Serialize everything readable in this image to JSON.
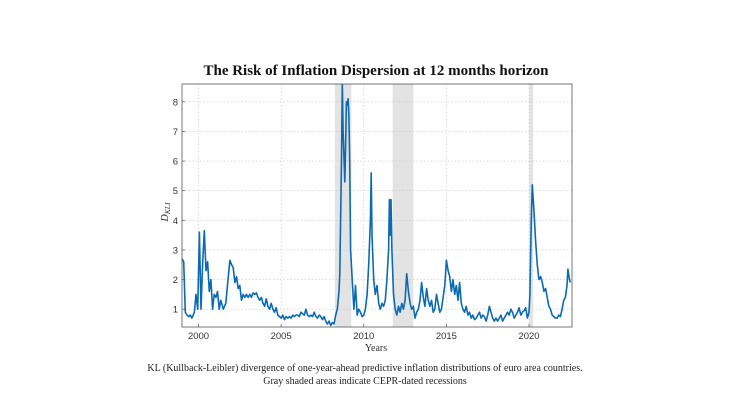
{
  "caption": {
    "line1": "KL (Kullback-Leibler) divergence of one-year-ahead predictive inflation distributions of euro area countries.",
    "line2": "Gray shaded areas indicate CEPR-dated recessions"
  },
  "chart_data": {
    "type": "line",
    "title": "The Risk of Inflation Dispersion at 12 months horizon",
    "xlabel": "Years",
    "ylabel": "D_{KLI}",
    "xlim": [
      1999.0,
      2022.6
    ],
    "ylim": [
      0.4,
      8.6
    ],
    "xticks": [
      2000,
      2005,
      2010,
      2015,
      2020
    ],
    "yticks": [
      1,
      2,
      3,
      4,
      5,
      6,
      7,
      8
    ],
    "grid": true,
    "recessions": [
      [
        2008.25,
        2009.25
      ],
      [
        2011.75,
        2013.0
      ],
      [
        2020.0,
        2020.25
      ]
    ],
    "series": [
      {
        "color": "#0b6ab4",
        "points": [
          [
            1999.0,
            2.7
          ],
          [
            1999.1,
            2.6
          ],
          [
            1999.2,
            0.9
          ],
          [
            1999.3,
            0.8
          ],
          [
            1999.4,
            0.75
          ],
          [
            1999.5,
            0.8
          ],
          [
            1999.6,
            0.7
          ],
          [
            1999.75,
            0.9
          ],
          [
            1999.85,
            1.5
          ],
          [
            1999.95,
            1.0
          ],
          [
            2000.05,
            3.6
          ],
          [
            2000.15,
            1.0
          ],
          [
            2000.25,
            2.6
          ],
          [
            2000.35,
            3.65
          ],
          [
            2000.45,
            2.3
          ],
          [
            2000.55,
            2.6
          ],
          [
            2000.65,
            1.6
          ],
          [
            2000.75,
            2.0
          ],
          [
            2000.85,
            1.0
          ],
          [
            2000.95,
            1.5
          ],
          [
            2001.05,
            1.4
          ],
          [
            2001.15,
            1.6
          ],
          [
            2001.25,
            1.0
          ],
          [
            2001.35,
            1.3
          ],
          [
            2001.5,
            1.0
          ],
          [
            2001.65,
            1.2
          ],
          [
            2001.8,
            2.1
          ],
          [
            2001.9,
            2.65
          ],
          [
            2002.0,
            2.5
          ],
          [
            2002.1,
            2.4
          ],
          [
            2002.2,
            1.9
          ],
          [
            2002.3,
            2.1
          ],
          [
            2002.4,
            1.7
          ],
          [
            2002.5,
            1.8
          ],
          [
            2002.6,
            1.3
          ],
          [
            2002.7,
            1.5
          ],
          [
            2002.8,
            1.4
          ],
          [
            2002.9,
            1.5
          ],
          [
            2003.0,
            1.4
          ],
          [
            2003.1,
            1.5
          ],
          [
            2003.2,
            1.4
          ],
          [
            2003.3,
            1.55
          ],
          [
            2003.4,
            1.5
          ],
          [
            2003.5,
            1.55
          ],
          [
            2003.6,
            1.4
          ],
          [
            2003.7,
            1.3
          ],
          [
            2003.8,
            1.4
          ],
          [
            2003.9,
            1.2
          ],
          [
            2004.0,
            1.1
          ],
          [
            2004.1,
            1.35
          ],
          [
            2004.2,
            1.1
          ],
          [
            2004.3,
            1.0
          ],
          [
            2004.4,
            1.2
          ],
          [
            2004.5,
            1.0
          ],
          [
            2004.6,
            0.9
          ],
          [
            2004.7,
            1.05
          ],
          [
            2004.8,
            0.8
          ],
          [
            2004.9,
            0.75
          ],
          [
            2005.0,
            0.7
          ],
          [
            2005.1,
            0.8
          ],
          [
            2005.2,
            0.65
          ],
          [
            2005.3,
            0.75
          ],
          [
            2005.4,
            0.7
          ],
          [
            2005.5,
            0.75
          ],
          [
            2005.6,
            0.7
          ],
          [
            2005.7,
            0.8
          ],
          [
            2005.8,
            0.75
          ],
          [
            2005.9,
            0.8
          ],
          [
            2006.0,
            0.8
          ],
          [
            2006.1,
            0.75
          ],
          [
            2006.2,
            0.9
          ],
          [
            2006.3,
            0.85
          ],
          [
            2006.4,
            0.8
          ],
          [
            2006.5,
            1.0
          ],
          [
            2006.6,
            0.8
          ],
          [
            2006.7,
            0.75
          ],
          [
            2006.8,
            0.8
          ],
          [
            2006.9,
            0.75
          ],
          [
            2007.0,
            0.9
          ],
          [
            2007.1,
            0.75
          ],
          [
            2007.2,
            0.7
          ],
          [
            2007.3,
            0.8
          ],
          [
            2007.4,
            0.75
          ],
          [
            2007.5,
            0.65
          ],
          [
            2007.6,
            0.75
          ],
          [
            2007.7,
            0.6
          ],
          [
            2007.8,
            0.5
          ],
          [
            2007.9,
            0.6
          ],
          [
            2008.0,
            0.45
          ],
          [
            2008.1,
            0.55
          ],
          [
            2008.2,
            0.5
          ],
          [
            2008.3,
            0.8
          ],
          [
            2008.4,
            1.0
          ],
          [
            2008.5,
            1.6
          ],
          [
            2008.55,
            2.2
          ],
          [
            2008.6,
            4.0
          ],
          [
            2008.65,
            6.0
          ],
          [
            2008.7,
            8.6
          ],
          [
            2008.75,
            7.0
          ],
          [
            2008.8,
            6.2
          ],
          [
            2008.85,
            5.3
          ],
          [
            2008.9,
            6.5
          ],
          [
            2008.95,
            8.0
          ],
          [
            2009.0,
            7.9
          ],
          [
            2009.05,
            8.1
          ],
          [
            2009.1,
            7.5
          ],
          [
            2009.15,
            6.0
          ],
          [
            2009.2,
            3.0
          ],
          [
            2009.3,
            2.0
          ],
          [
            2009.4,
            1.0
          ],
          [
            2009.5,
            1.8
          ],
          [
            2009.6,
            0.8
          ],
          [
            2009.7,
            1.0
          ],
          [
            2009.8,
            0.9
          ],
          [
            2009.9,
            0.75
          ],
          [
            2010.0,
            0.8
          ],
          [
            2010.1,
            1.0
          ],
          [
            2010.2,
            1.5
          ],
          [
            2010.3,
            2.5
          ],
          [
            2010.4,
            4.0
          ],
          [
            2010.45,
            5.6
          ],
          [
            2010.5,
            3.5
          ],
          [
            2010.6,
            2.0
          ],
          [
            2010.7,
            1.5
          ],
          [
            2010.8,
            1.8
          ],
          [
            2010.9,
            1.2
          ],
          [
            2011.0,
            1.0
          ],
          [
            2011.1,
            1.2
          ],
          [
            2011.2,
            1.1
          ],
          [
            2011.3,
            1.3
          ],
          [
            2011.4,
            2.0
          ],
          [
            2011.5,
            3.0
          ],
          [
            2011.55,
            4.7
          ],
          [
            2011.6,
            3.5
          ],
          [
            2011.65,
            4.7
          ],
          [
            2011.7,
            3.0
          ],
          [
            2011.8,
            1.5
          ],
          [
            2011.9,
            1.0
          ],
          [
            2012.0,
            0.8
          ],
          [
            2012.1,
            1.1
          ],
          [
            2012.2,
            0.9
          ],
          [
            2012.3,
            1.2
          ],
          [
            2012.4,
            1.0
          ],
          [
            2012.5,
            1.3
          ],
          [
            2012.6,
            2.2
          ],
          [
            2012.7,
            1.6
          ],
          [
            2012.8,
            1.2
          ],
          [
            2012.9,
            1.0
          ],
          [
            2013.0,
            1.1
          ],
          [
            2013.1,
            0.7
          ],
          [
            2013.2,
            0.9
          ],
          [
            2013.3,
            1.0
          ],
          [
            2013.4,
            1.3
          ],
          [
            2013.5,
            1.9
          ],
          [
            2013.6,
            1.4
          ],
          [
            2013.7,
            1.1
          ],
          [
            2013.8,
            1.7
          ],
          [
            2013.9,
            1.3
          ],
          [
            2014.0,
            1.1
          ],
          [
            2014.1,
            1.3
          ],
          [
            2014.2,
            0.9
          ],
          [
            2014.3,
            1.0
          ],
          [
            2014.4,
            1.5
          ],
          [
            2014.5,
            1.2
          ],
          [
            2014.6,
            0.9
          ],
          [
            2014.7,
            1.0
          ],
          [
            2014.8,
            1.4
          ],
          [
            2014.9,
            1.8
          ],
          [
            2015.0,
            2.65
          ],
          [
            2015.1,
            2.3
          ],
          [
            2015.2,
            2.1
          ],
          [
            2015.3,
            1.6
          ],
          [
            2015.4,
            2.0
          ],
          [
            2015.5,
            1.5
          ],
          [
            2015.6,
            1.8
          ],
          [
            2015.7,
            1.3
          ],
          [
            2015.8,
            1.9
          ],
          [
            2015.9,
            1.2
          ],
          [
            2016.0,
            1.0
          ],
          [
            2016.1,
            0.9
          ],
          [
            2016.2,
            1.1
          ],
          [
            2016.3,
            0.8
          ],
          [
            2016.4,
            0.9
          ],
          [
            2016.5,
            0.7
          ],
          [
            2016.6,
            0.8
          ],
          [
            2016.7,
            0.65
          ],
          [
            2016.8,
            0.7
          ],
          [
            2016.9,
            0.8
          ],
          [
            2017.0,
            0.9
          ],
          [
            2017.1,
            0.7
          ],
          [
            2017.2,
            0.8
          ],
          [
            2017.3,
            0.75
          ],
          [
            2017.4,
            0.6
          ],
          [
            2017.5,
            0.8
          ],
          [
            2017.6,
            1.1
          ],
          [
            2017.7,
            0.9
          ],
          [
            2017.8,
            0.7
          ],
          [
            2017.9,
            0.6
          ],
          [
            2018.0,
            0.7
          ],
          [
            2018.1,
            0.6
          ],
          [
            2018.2,
            0.7
          ],
          [
            2018.3,
            0.8
          ],
          [
            2018.4,
            0.6
          ],
          [
            2018.5,
            0.7
          ],
          [
            2018.6,
            0.8
          ],
          [
            2018.7,
            0.9
          ],
          [
            2018.8,
            0.8
          ],
          [
            2018.9,
            1.0
          ],
          [
            2019.0,
            0.9
          ],
          [
            2019.1,
            0.7
          ],
          [
            2019.2,
            0.8
          ],
          [
            2019.3,
            0.9
          ],
          [
            2019.4,
            1.05
          ],
          [
            2019.5,
            0.8
          ],
          [
            2019.6,
            0.9
          ],
          [
            2019.7,
            0.95
          ],
          [
            2019.8,
            1.05
          ],
          [
            2019.9,
            0.7
          ],
          [
            2020.0,
            0.9
          ],
          [
            2020.05,
            1.5
          ],
          [
            2020.1,
            3.0
          ],
          [
            2020.15,
            4.3
          ],
          [
            2020.2,
            5.2
          ],
          [
            2020.3,
            4.3
          ],
          [
            2020.4,
            3.3
          ],
          [
            2020.5,
            2.5
          ],
          [
            2020.6,
            2.0
          ],
          [
            2020.7,
            2.1
          ],
          [
            2020.8,
            1.9
          ],
          [
            2020.9,
            1.6
          ],
          [
            2021.0,
            1.7
          ],
          [
            2021.1,
            1.4
          ],
          [
            2021.2,
            1.1
          ],
          [
            2021.3,
            1.0
          ],
          [
            2021.4,
            0.8
          ],
          [
            2021.5,
            0.75
          ],
          [
            2021.6,
            0.7
          ],
          [
            2021.7,
            0.7
          ],
          [
            2021.8,
            0.8
          ],
          [
            2021.9,
            0.75
          ],
          [
            2022.0,
            1.0
          ],
          [
            2022.1,
            1.3
          ],
          [
            2022.2,
            1.4
          ],
          [
            2022.3,
            1.8
          ],
          [
            2022.35,
            2.35
          ],
          [
            2022.45,
            2.0
          ],
          [
            2022.5,
            1.9
          ]
        ]
      }
    ]
  }
}
